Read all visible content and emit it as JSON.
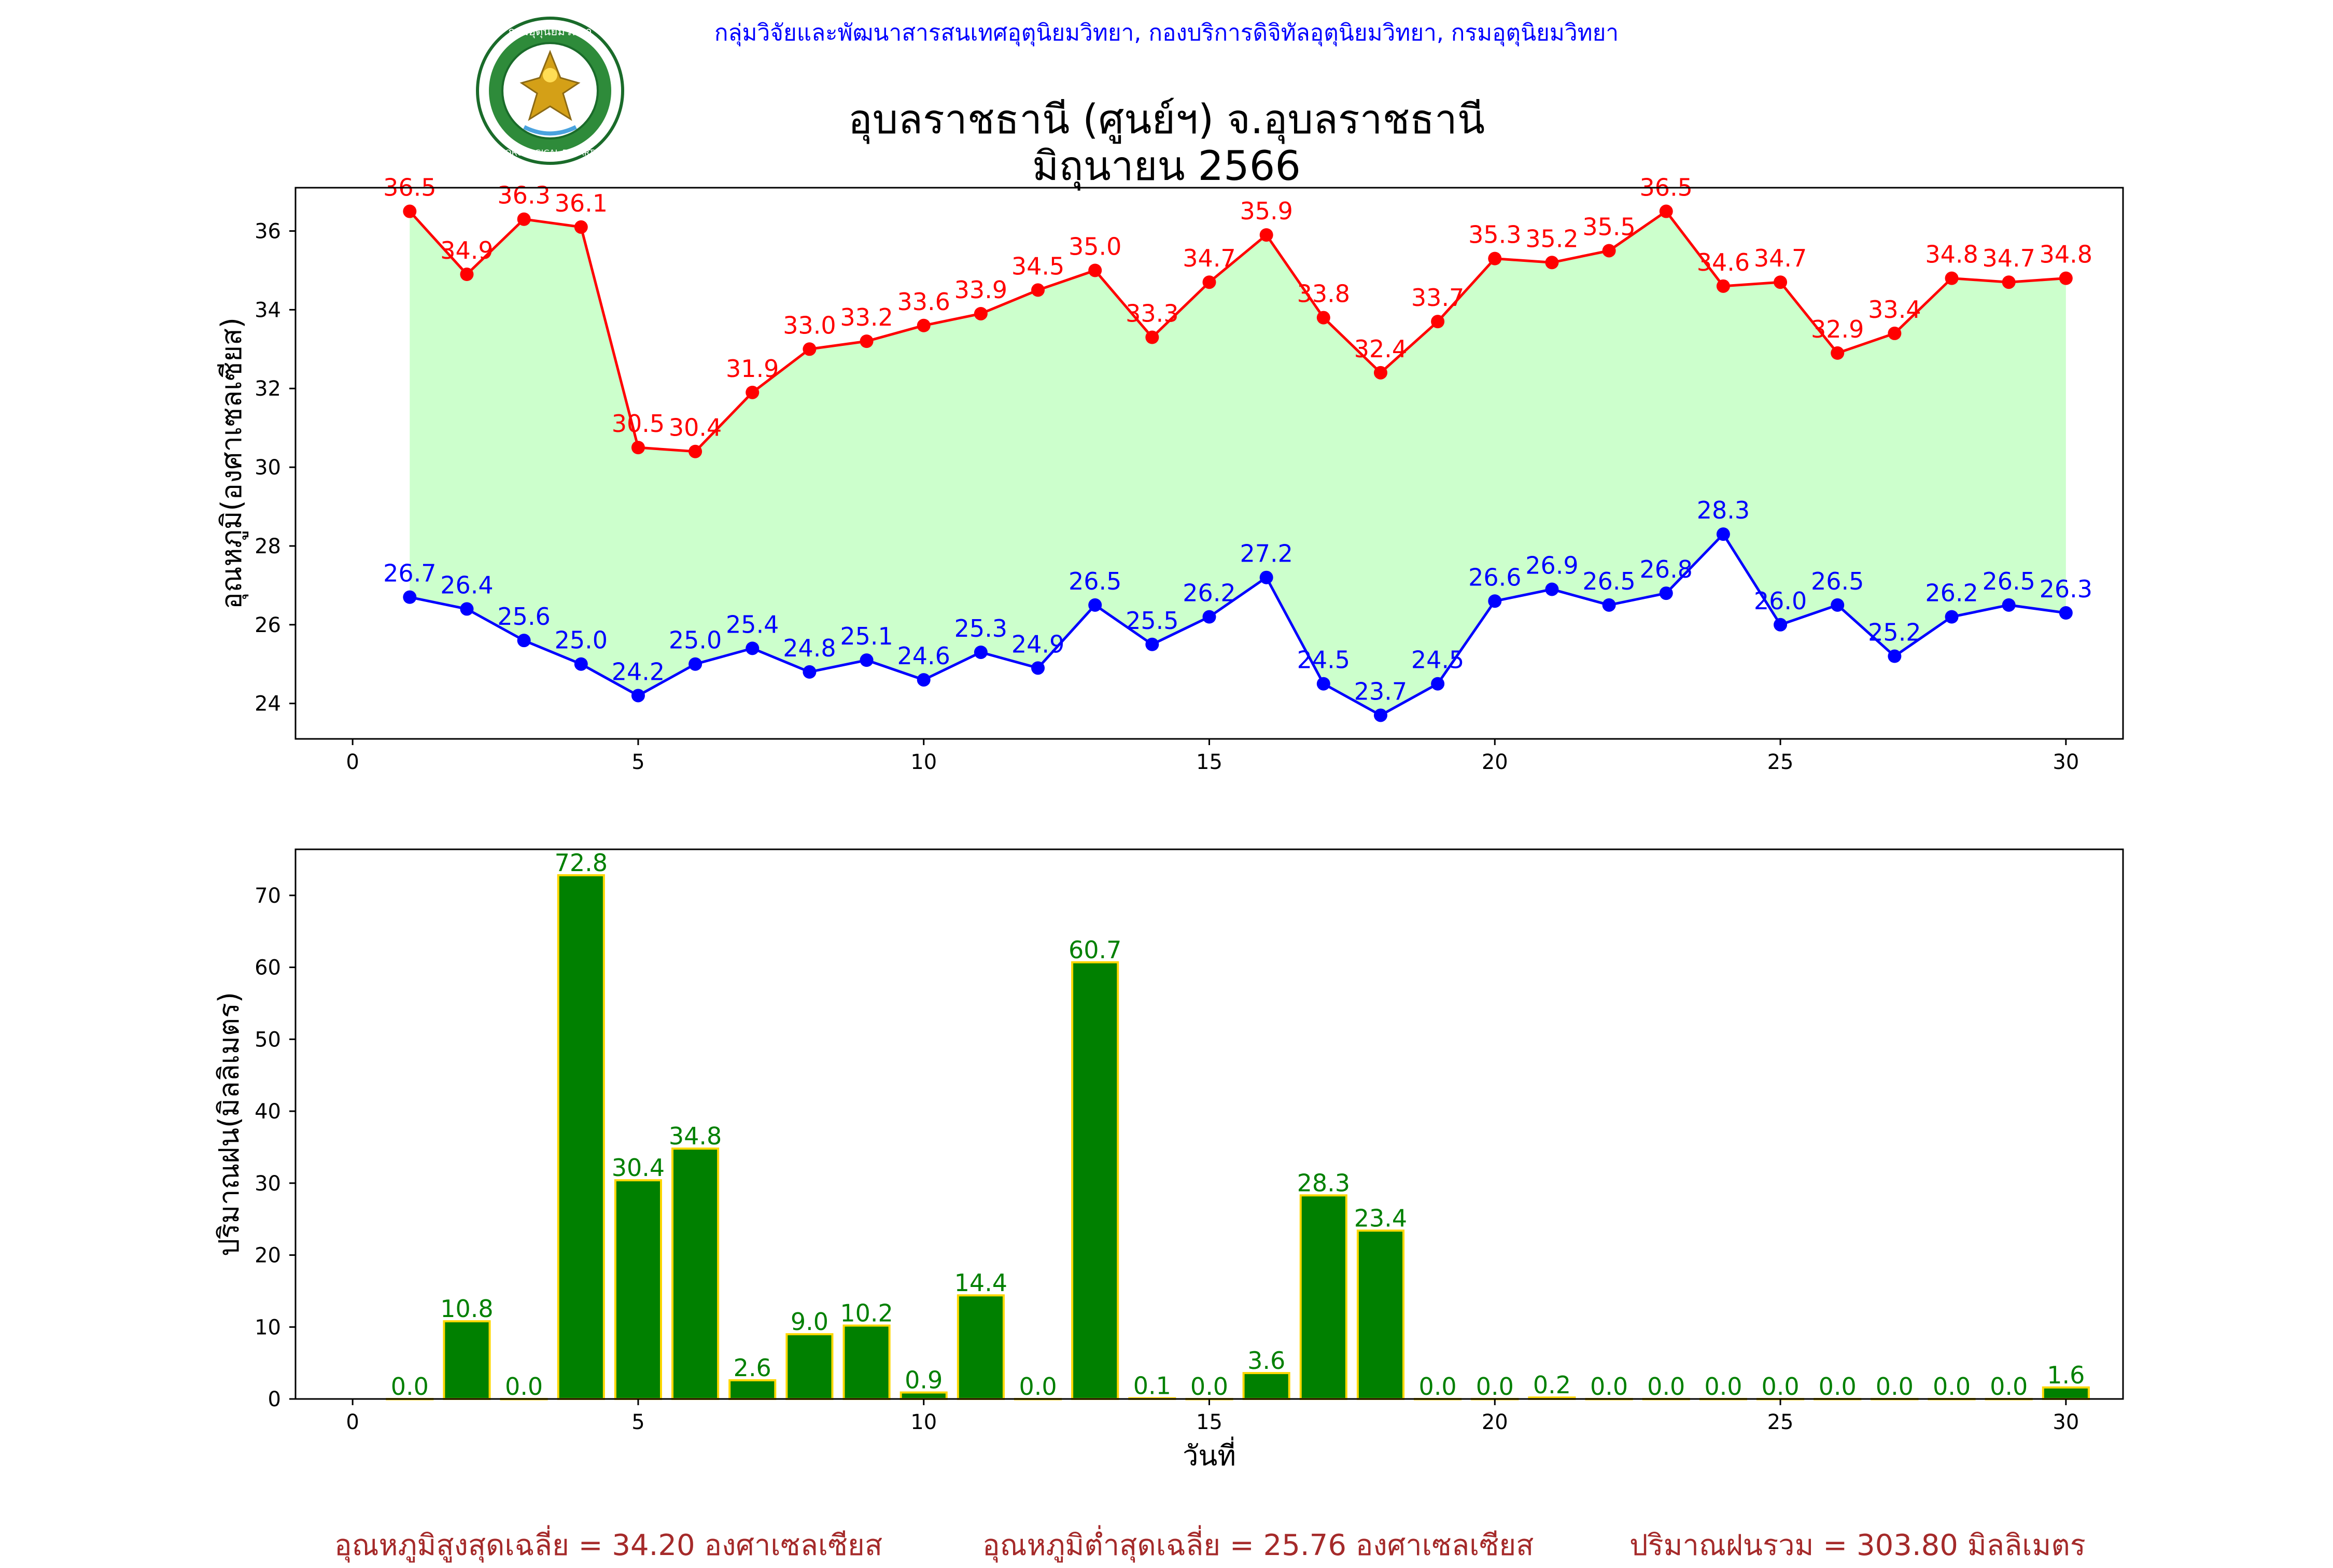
{
  "header": {
    "department": "กลุ่มวิจัยและพัฒนาสารสนเทศอุตุนิยมวิทยา, กองบริการดิจิทัลอุตุนิยมวิทยา, กรมอุตุนิยมวิทยา",
    "station": "อุบลราชธานี (ศูนย์ฯ) จ.อุบลราชธานี",
    "period": "มิถุนายน 2566",
    "logo_text": "METEOROLOGICAL DEPARTMENT",
    "logo_text_top": "กรมอุตุนิยมวิทยา"
  },
  "chart_data": [
    {
      "type": "line",
      "ylabel": "อุณหภูมิ(องศาเซลเซียส)",
      "xlabel": "",
      "xlim": [
        -1,
        31
      ],
      "ylim": [
        23.1,
        37.1
      ],
      "xticks": [
        0,
        5,
        10,
        15,
        20,
        25,
        30
      ],
      "yticks": [
        24,
        26,
        28,
        30,
        32,
        34,
        36
      ],
      "x": [
        1,
        2,
        3,
        4,
        5,
        6,
        7,
        8,
        9,
        10,
        11,
        12,
        13,
        14,
        15,
        16,
        17,
        18,
        19,
        20,
        21,
        22,
        23,
        24,
        25,
        26,
        27,
        28,
        29,
        30
      ],
      "series": [
        {
          "role": "max",
          "color": "#ff0000",
          "values": [
            36.5,
            34.9,
            36.3,
            36.1,
            30.5,
            30.4,
            31.9,
            33.0,
            33.2,
            33.6,
            33.9,
            34.5,
            35.0,
            33.3,
            34.7,
            35.9,
            33.8,
            32.4,
            33.7,
            35.3,
            35.2,
            35.5,
            36.5,
            34.6,
            34.7,
            32.9,
            33.4,
            34.8,
            34.7,
            34.8
          ]
        },
        {
          "role": "min",
          "color": "#0000ff",
          "values": [
            26.7,
            26.4,
            25.6,
            25.0,
            24.2,
            25.0,
            25.4,
            24.8,
            25.1,
            24.6,
            25.3,
            24.9,
            26.5,
            25.5,
            26.2,
            27.2,
            24.5,
            23.7,
            24.5,
            26.6,
            26.9,
            26.5,
            26.8,
            28.3,
            26.0,
            26.5,
            25.2,
            26.2,
            26.5,
            26.3
          ]
        }
      ],
      "fill_color": "#ccffcc",
      "grid": false
    },
    {
      "type": "bar",
      "ylabel": "ปริมาณฝน(มิลลิเมตร)",
      "xlabel": "วันที่",
      "xlim": [
        -1,
        31
      ],
      "ylim": [
        0,
        76.4
      ],
      "xticks": [
        0,
        5,
        10,
        15,
        20,
        25,
        30
      ],
      "yticks": [
        0,
        10,
        20,
        30,
        40,
        50,
        60,
        70
      ],
      "x": [
        1,
        2,
        3,
        4,
        5,
        6,
        7,
        8,
        9,
        10,
        11,
        12,
        13,
        14,
        15,
        16,
        17,
        18,
        19,
        20,
        21,
        22,
        23,
        24,
        25,
        26,
        27,
        28,
        29,
        30
      ],
      "values": [
        0.0,
        10.8,
        0.0,
        72.8,
        30.4,
        34.8,
        2.6,
        9.0,
        10.2,
        0.9,
        14.4,
        0.0,
        60.7,
        0.1,
        0.0,
        3.6,
        28.3,
        23.4,
        0.0,
        0.0,
        0.2,
        0.0,
        0.0,
        0.0,
        0.0,
        0.0,
        0.0,
        0.0,
        0.0,
        1.6
      ],
      "bar_color": "#008000",
      "edge_color": "#ffd700",
      "label_color": "#008000",
      "grid": false
    }
  ],
  "footer": {
    "avg_max": "อุณหภูมิสูงสุดเฉลี่ย = 34.20 องศาเซลเซียส",
    "avg_min": "อุณหภูมิต่ำสุดเฉลี่ย = 25.76 องศาเซลเซียส",
    "total_rain": "ปริมาณฝนรวม = 303.80 มิลลิเมตร"
  }
}
